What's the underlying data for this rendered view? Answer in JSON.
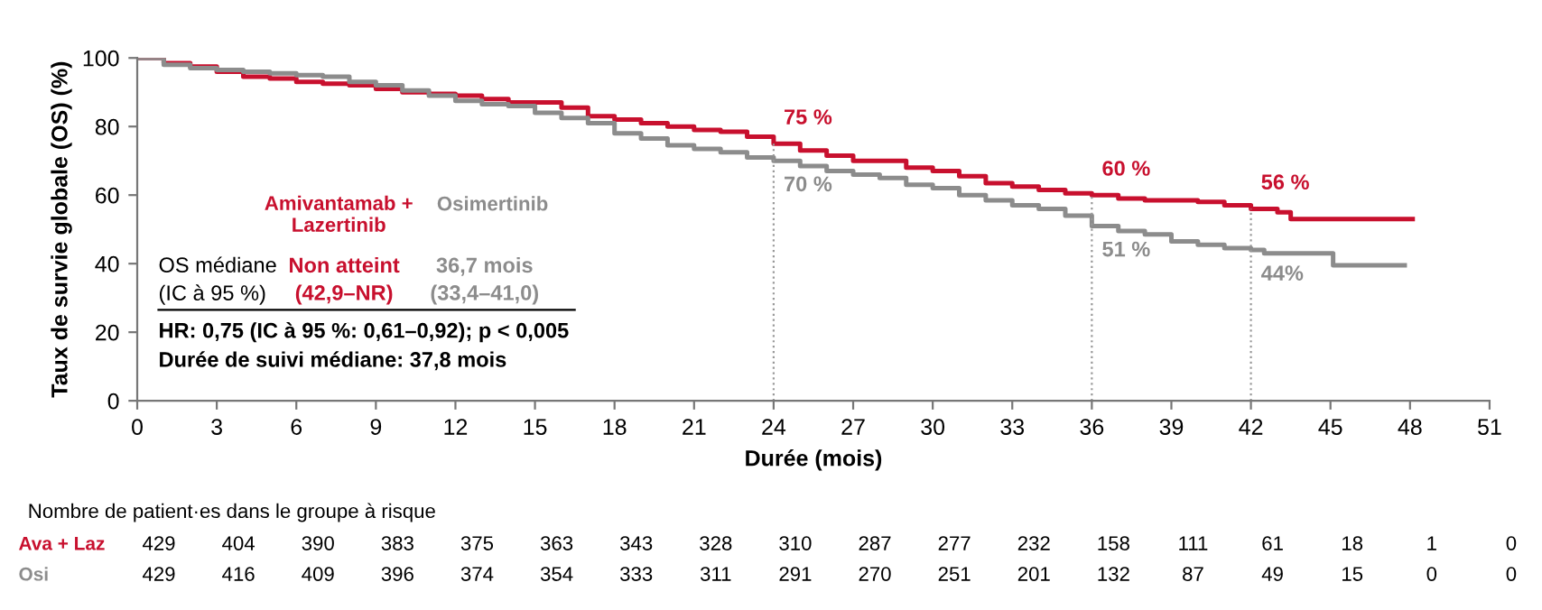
{
  "chart_data": {
    "type": "step",
    "xlabel": "Durée (mois)",
    "ylabel": "Taux de survie globale (OS) (%)",
    "xlim": [
      0,
      51
    ],
    "xticks": [
      0,
      3,
      6,
      9,
      12,
      15,
      18,
      21,
      24,
      27,
      30,
      33,
      36,
      39,
      42,
      45,
      48,
      51
    ],
    "ylim": [
      0,
      100
    ],
    "yticks": [
      0,
      20,
      40,
      60,
      80,
      100
    ],
    "grid": false,
    "legend": false,
    "series": [
      {
        "name": "Amivantamab + Lazertinib",
        "color": "#c8102e",
        "x": [
          0,
          0.5,
          1,
          2,
          3,
          4,
          5,
          6,
          7,
          8,
          9,
          10,
          11,
          12,
          13,
          14,
          15,
          16,
          17,
          18,
          19,
          20,
          21,
          22,
          23,
          24,
          25,
          26,
          27,
          29,
          30,
          31,
          32,
          33,
          34,
          35,
          36,
          37,
          38,
          40,
          41,
          42,
          43,
          43.5,
          48.1
        ],
        "values": [
          100,
          100,
          98.5,
          97.5,
          96,
          94.5,
          94,
          93,
          92.5,
          92,
          91,
          90,
          89.5,
          89,
          88,
          87,
          87,
          85.5,
          83,
          82,
          81,
          80,
          79,
          78.5,
          77,
          75,
          73,
          71.5,
          70,
          68,
          67,
          65.5,
          63.5,
          62.5,
          61.5,
          60.5,
          60,
          59,
          58.5,
          58,
          57,
          56,
          55,
          53,
          53
        ]
      },
      {
        "name": "Osimertinib",
        "color": "#8c8c8c",
        "x": [
          0,
          1,
          2,
          3,
          4,
          5,
          6,
          7,
          8,
          9,
          10,
          11,
          12,
          13,
          14,
          15,
          16,
          17,
          18,
          19,
          20,
          21,
          22,
          23,
          24,
          25,
          26,
          27,
          28,
          29,
          30,
          31,
          32,
          33,
          34,
          35,
          36,
          37,
          38,
          39,
          40,
          41,
          42,
          42.5,
          45,
          45.1,
          47.8
        ],
        "values": [
          100,
          98,
          97,
          96.5,
          96,
          95.5,
          95,
          94.5,
          93,
          92,
          90.5,
          89,
          87.5,
          86.5,
          86,
          84,
          82.5,
          81,
          78,
          76.5,
          74.5,
          73.5,
          72.5,
          71,
          70,
          68.5,
          67,
          66,
          65,
          63,
          62,
          60,
          58.5,
          57,
          56,
          54,
          51,
          49.5,
          48.5,
          46.5,
          45.5,
          44.5,
          44,
          43,
          43,
          39.5,
          39.5
        ]
      }
    ],
    "ref_lines": [
      {
        "axis": "x",
        "value": 24,
        "color": "#999999",
        "line_style": "dotted"
      },
      {
        "axis": "x",
        "value": 36,
        "color": "#999999",
        "line_style": "dotted"
      },
      {
        "axis": "x",
        "value": 42,
        "color": "#999999",
        "line_style": "dotted"
      }
    ],
    "annotations": [
      {
        "text": "75 %",
        "x": 24,
        "y": 75
      },
      {
        "text": "70 %",
        "x": 24,
        "y": 70
      },
      {
        "text": "60 %",
        "x": 36,
        "y": 60
      },
      {
        "text": "51 %",
        "x": 36,
        "y": 51
      },
      {
        "text": "56 %",
        "x": 42,
        "y": 56
      },
      {
        "text": "44%",
        "x": 42,
        "y": 44
      },
      "OS médiane\n(IC à 95 %)",
      "Non atteint\n(42,9–NR)",
      "36,7 mois\n(33,4–41,0)",
      "HR: 0,75 (IC à 95 %: 0,61–0,92); p < 0,005",
      "Durée de suivi médiane: 37,8 mois",
      "Nombre de patient·es dans le groupe à risque",
      "Ava + Laz",
      "429",
      "404",
      "390",
      "383",
      "375",
      "363",
      "343",
      "328",
      "310",
      "287",
      "277",
      "232",
      "158",
      "111",
      "61",
      "18",
      "1",
      "0",
      "Osi",
      "429",
      "416",
      "409",
      "396",
      "374",
      "354",
      "333",
      "311",
      "291",
      "270",
      "251",
      "201",
      "132",
      "87",
      "49",
      "15",
      "0",
      "0"
    ]
  }
}
